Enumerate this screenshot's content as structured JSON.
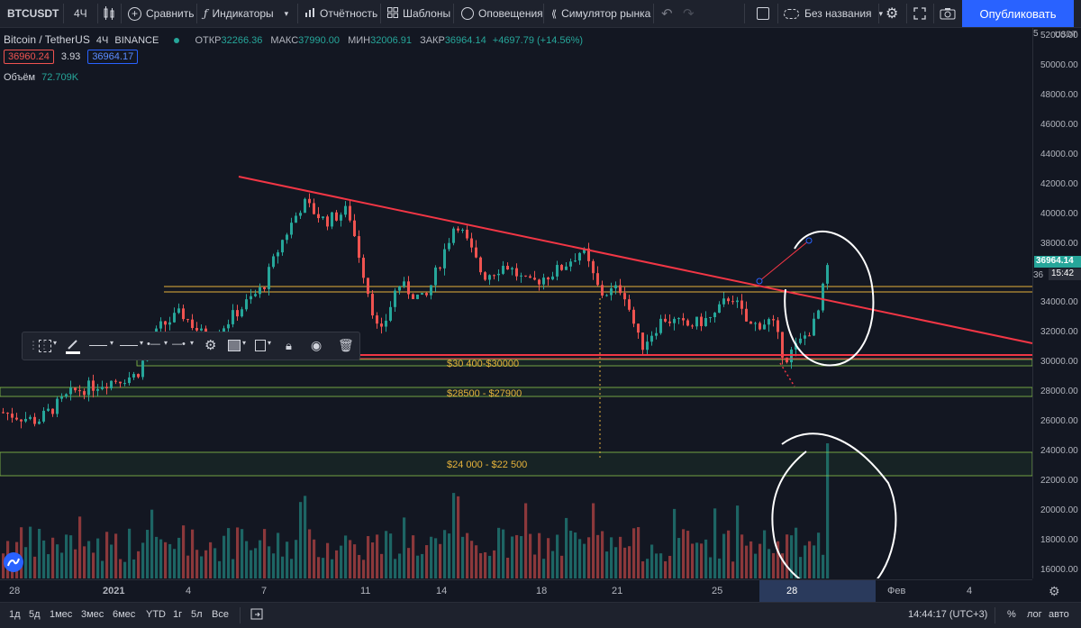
{
  "toolbar": {
    "symbol": "BTCUSDT",
    "interval": "4Ч",
    "compare": "Сравнить",
    "indicators": "Индикаторы",
    "report": "Отчётность",
    "templates": "Шаблоны",
    "alerts": "Оповещения",
    "simulator": "Симулятор рынка",
    "layout_name": "Без названия",
    "publish": "Опубликовать"
  },
  "legend": {
    "title": "Bitcoin / TetherUS",
    "interval": "4Ч",
    "exchange": "BINANCE",
    "open_label": "ОТКР",
    "open": "32266.36",
    "high_label": "МАКС",
    "high": "37990.00",
    "low_label": "МИН",
    "low": "32006.91",
    "close_label": "ЗАКР",
    "close": "36964.14",
    "change": "+4697.79 (+14.56%)",
    "bid": "36960.24",
    "spread": "3.93",
    "ask": "36964.17",
    "volume_label": "Объём",
    "volume": "72.709K"
  },
  "price_axis": {
    "currency": "USDT",
    "labels": [
      "52000.00",
      "50000.00",
      "48000.00",
      "46000.00",
      "44000.00",
      "42000.00",
      "40000.00",
      "38000.00",
      "34000.00",
      "32000.00",
      "30000.00",
      "28000.00",
      "26000.00",
      "24000.00",
      "22000.00",
      "20000.00",
      "18000.00",
      "16000.00"
    ],
    "last_price": "36964.14",
    "countdown": "15:42",
    "partial_top": "5",
    "partial_mid": "36"
  },
  "time_axis": {
    "labels": [
      "28",
      "2021",
      "4",
      "7",
      "11",
      "14",
      "18",
      "21",
      "25",
      "28",
      "Фев",
      "4"
    ],
    "active": "28"
  },
  "zones": {
    "zone1": "$30 400-$30000",
    "zone2": "$28500 - $27900",
    "zone3": "$24 000 - $22 500"
  },
  "bottom": {
    "ranges": [
      "1д",
      "5д",
      "1мес",
      "3мес",
      "6мес",
      "YTD",
      "1г",
      "5л",
      "Все"
    ],
    "time": "14:44:17 (UTC+3)",
    "percent": "%",
    "log": "лог",
    "auto": "авто"
  },
  "colors": {
    "up": "#26a69a",
    "down": "#ef5350",
    "trend": "#f23645",
    "zone": "#e5b23b",
    "accent": "#2962ff"
  }
}
